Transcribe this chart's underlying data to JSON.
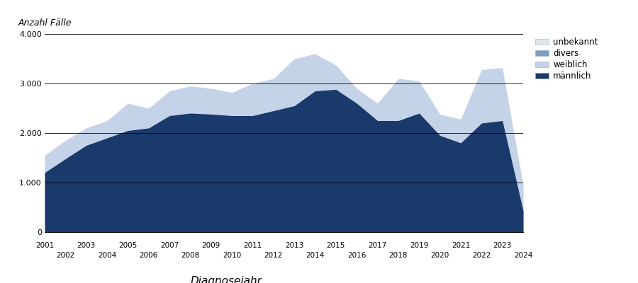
{
  "years": [
    2001,
    2002,
    2003,
    2004,
    2005,
    2006,
    2007,
    2008,
    2009,
    2010,
    2011,
    2012,
    2013,
    2014,
    2015,
    2016,
    2017,
    2018,
    2019,
    2020,
    2021,
    2022,
    2023,
    2024
  ],
  "maennlich": [
    1200,
    1480,
    1750,
    1900,
    2050,
    2100,
    2350,
    2400,
    2380,
    2350,
    2350,
    2450,
    2550,
    2850,
    2880,
    2600,
    2250,
    2250,
    2400,
    1950,
    1800,
    2200,
    2250,
    430
  ],
  "total": [
    1550,
    1850,
    2100,
    2250,
    2600,
    2500,
    2850,
    2950,
    2900,
    2820,
    3000,
    3100,
    3500,
    3600,
    3370,
    2900,
    2600,
    3100,
    3050,
    2380,
    2280,
    3280,
    3320,
    950
  ],
  "color_maennlich": "#1a3a6b",
  "color_weiblich": "#c5d3e8",
  "color_divers": "#7a9ec0",
  "color_unbekannt": "#dde6f0",
  "title": "Anzahl Fälle",
  "xlabel": "Diagnosejahr",
  "ylim": [
    0,
    4000
  ],
  "yticks": [
    0,
    1000,
    2000,
    3000,
    4000
  ],
  "legend_labels": [
    "unbekannt",
    "divers",
    "weiblich",
    "männlich"
  ],
  "odd_years": [
    2001,
    2003,
    2005,
    2007,
    2009,
    2011,
    2013,
    2015,
    2017,
    2019,
    2021,
    2023
  ],
  "even_years": [
    2002,
    2004,
    2006,
    2008,
    2010,
    2012,
    2014,
    2016,
    2018,
    2020,
    2022,
    2024
  ]
}
